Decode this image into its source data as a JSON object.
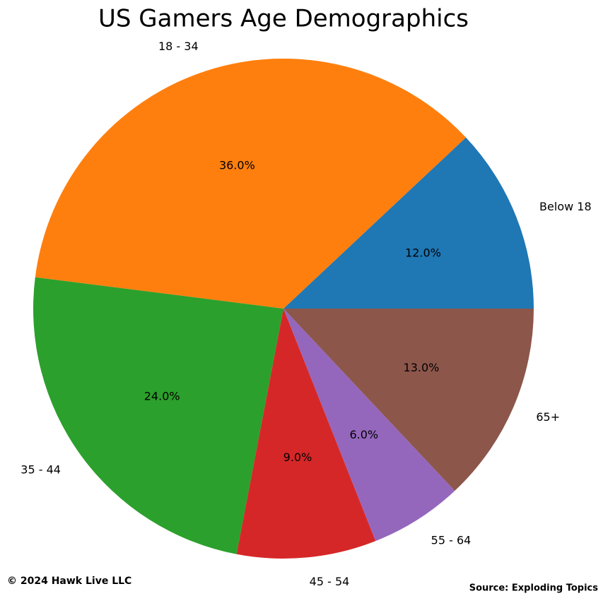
{
  "chart_data": {
    "type": "pie",
    "title": "US Gamers Age Demographics",
    "categories": [
      "Below 18",
      "18 - 34",
      "35 - 44",
      "45 - 54",
      "55 - 64",
      "65+"
    ],
    "values": [
      12,
      36,
      24,
      9,
      6,
      13
    ],
    "value_labels": [
      "12.0%",
      "36.0%",
      "24.0%",
      "9.0%",
      "6.0%",
      "13.0%"
    ],
    "colors": [
      "#1f77b4",
      "#ff7f0e",
      "#2ca02c",
      "#d62728",
      "#9467bd",
      "#8c564b"
    ],
    "copyright": "© 2024 Hawk Live LLC",
    "source": "Source: Exploding Topics"
  }
}
